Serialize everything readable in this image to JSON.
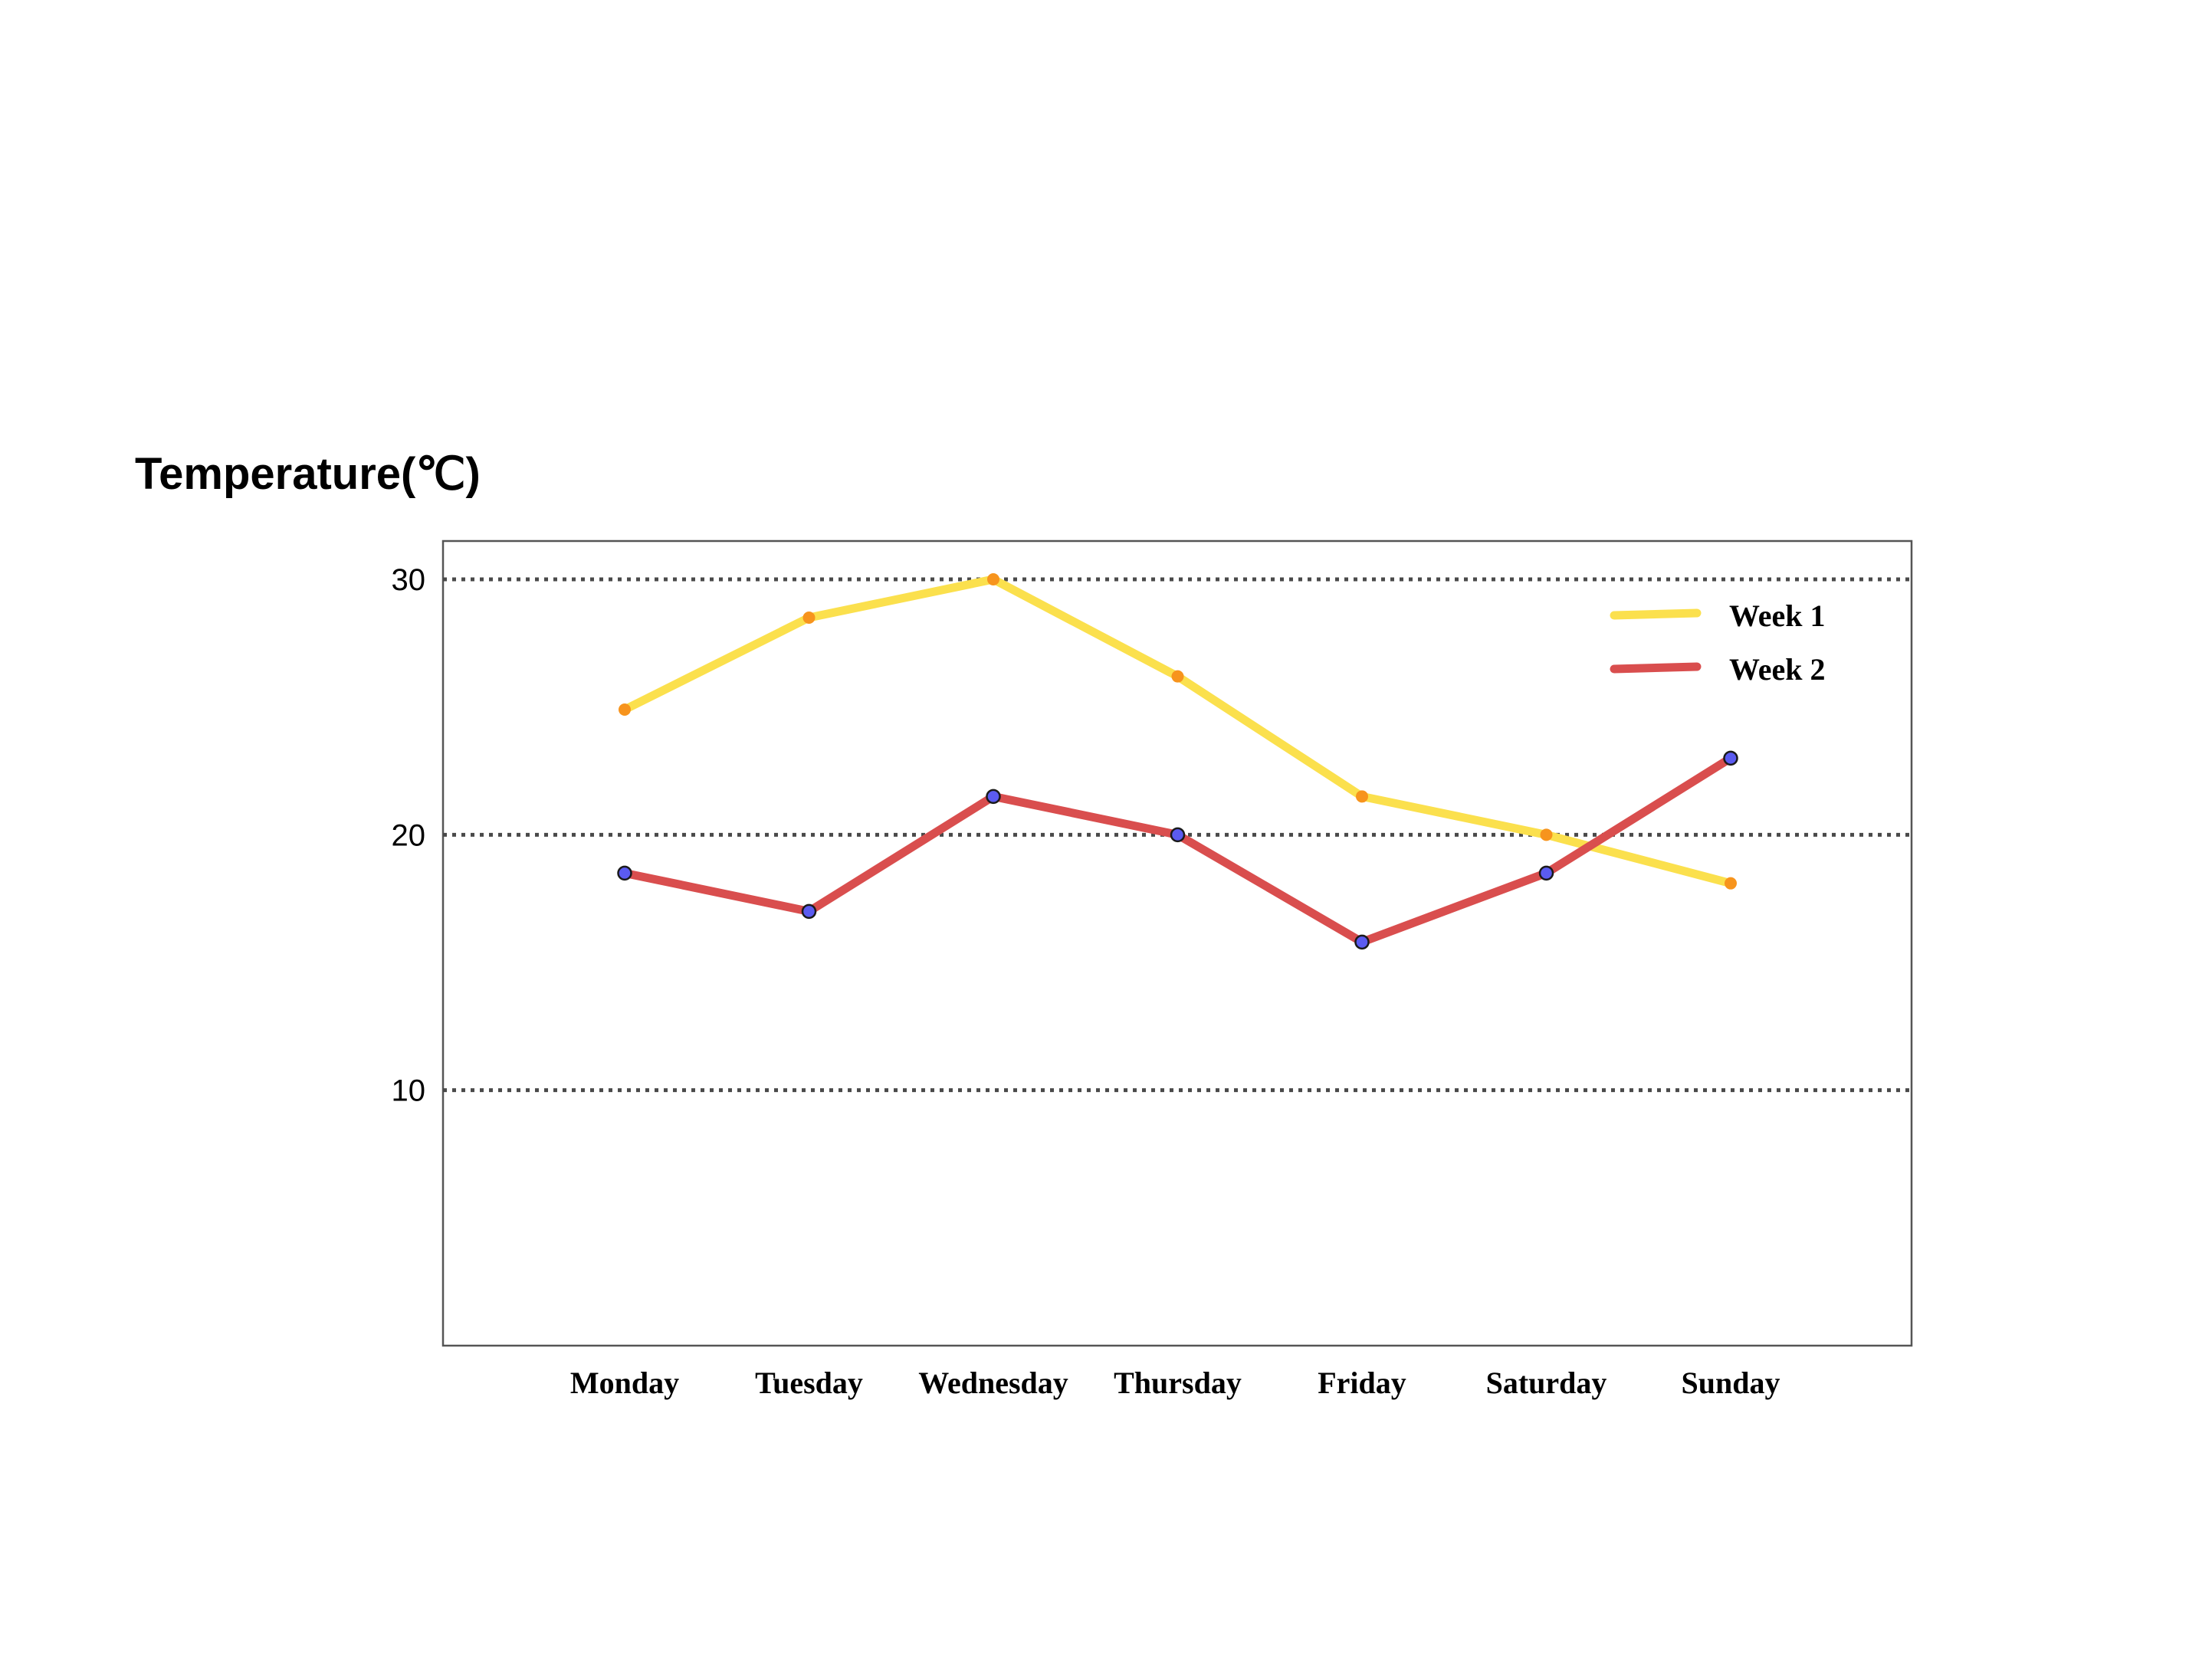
{
  "chart_data": {
    "type": "line",
    "title": "",
    "ylabel": "Temperature(℃)",
    "xlabel": "",
    "categories": [
      "Monday",
      "Tuesday",
      "Wednesday",
      "Thursday",
      "Friday",
      "Saturday",
      "Sunday"
    ],
    "ylim": [
      0,
      31.5
    ],
    "yticks": [
      "10",
      "20",
      "30"
    ],
    "grid": "horizontal dotted at 10, 20, 30",
    "legend_position": "top-right",
    "series": [
      {
        "name": "Week 1",
        "values": [
          24.9,
          28.5,
          30,
          26.2,
          21.5,
          20,
          18.1
        ],
        "line_color": "#fbe04d",
        "marker_color": "#f7941d",
        "marker_stroke": "none"
      },
      {
        "name": "Week 2",
        "values": [
          18.5,
          17,
          21.5,
          20,
          15.8,
          18.5,
          23
        ],
        "line_color": "#d94e4e",
        "marker_color": "#5b5bf0",
        "marker_stroke": "#1a1a1a"
      }
    ]
  }
}
